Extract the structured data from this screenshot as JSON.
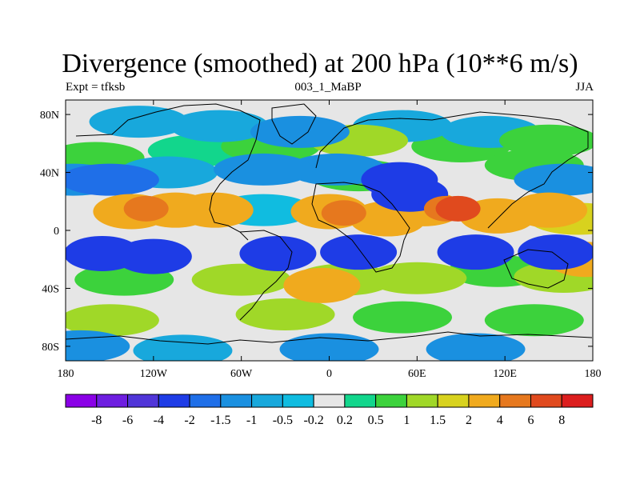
{
  "title": "Divergence (smoothed) at 200 hPa (10**6 m/s)",
  "subtitle_left": "Expt = tfksb",
  "subtitle_center": "003_1_MaBP",
  "subtitle_right": "JJA",
  "lat_labels": [
    "80N",
    "40N",
    "0",
    "40S",
    "80S"
  ],
  "lon_labels": [
    "180",
    "120W",
    "60W",
    "0",
    "60E",
    "120E",
    "180"
  ],
  "colorbar": {
    "labels": [
      "-8",
      "-6",
      "-4",
      "-2",
      "-1.5",
      "-1",
      "-0.5",
      "-0.2",
      "0.2",
      "0.5",
      "1",
      "1.5",
      "2",
      "4",
      "6",
      "8"
    ],
    "colors": [
      "#8a00e6",
      "#6e1ee0",
      "#5035d8",
      "#1e3ce6",
      "#1f6fe8",
      "#1a90e0",
      "#18a8dc",
      "#10bce0",
      "#e6e6e6",
      "#12d68c",
      "#3cd23c",
      "#a0d828",
      "#d8d21e",
      "#f0aa1e",
      "#e6781e",
      "#e04a1e",
      "#dc1e1e"
    ]
  },
  "chart_data": {
    "type": "filled-contour map",
    "variable": "Divergence (smoothed) at 200 hPa",
    "units": "10**6 m/s",
    "season": "JJA",
    "experiment": "tfksb",
    "run": "003_1_MaBP",
    "xaxis": {
      "range": [
        -180,
        180
      ],
      "ticks": [
        -180,
        -120,
        -60,
        0,
        60,
        120,
        180
      ]
    },
    "yaxis": {
      "range": [
        -90,
        90
      ],
      "ticks": [
        80,
        40,
        0,
        -40,
        -80
      ]
    },
    "levels": [
      -8,
      -6,
      -4,
      -2,
      -1.5,
      -1,
      -0.5,
      -0.2,
      0.2,
      0.5,
      1,
      1.5,
      2,
      4,
      6,
      8
    ],
    "regions": [
      {
        "lon": -175,
        "lat": 35,
        "value": -1.2
      },
      {
        "lon": -150,
        "lat": 35,
        "value": -1.8
      },
      {
        "lon": -110,
        "lat": 40,
        "value": -1.0
      },
      {
        "lon": -160,
        "lat": 50,
        "value": 0.6
      },
      {
        "lon": -90,
        "lat": 55,
        "value": 0.4
      },
      {
        "lon": -130,
        "lat": 75,
        "value": -0.8
      },
      {
        "lon": -75,
        "lat": 72,
        "value": -1.0
      },
      {
        "lon": -20,
        "lat": 68,
        "value": -1.2
      },
      {
        "lon": 50,
        "lat": 72,
        "value": -0.9
      },
      {
        "lon": 110,
        "lat": 68,
        "value": -0.7
      },
      {
        "lon": -40,
        "lat": 58,
        "value": 0.8
      },
      {
        "lon": 20,
        "lat": 62,
        "value": 1.0
      },
      {
        "lon": 90,
        "lat": 58,
        "value": 0.6
      },
      {
        "lon": 150,
        "lat": 62,
        "value": 0.8
      },
      {
        "lon": -45,
        "lat": 42,
        "value": -1.5
      },
      {
        "lon": 5,
        "lat": 42,
        "value": -1.3
      },
      {
        "lon": 20,
        "lat": 38,
        "value": 0.7
      },
      {
        "lon": 140,
        "lat": 45,
        "value": 0.7
      },
      {
        "lon": 160,
        "lat": 35,
        "value": -1.2
      },
      {
        "lon": -135,
        "lat": 13,
        "value": 2.8
      },
      {
        "lon": -125,
        "lat": 15,
        "value": 4.6
      },
      {
        "lon": -105,
        "lat": 14,
        "value": 2.4
      },
      {
        "lon": -78,
        "lat": 14,
        "value": 3.0
      },
      {
        "lon": -45,
        "lat": 14,
        "value": -0.5
      },
      {
        "lon": 0,
        "lat": 13,
        "value": 2.6
      },
      {
        "lon": 10,
        "lat": 12,
        "value": 4.8
      },
      {
        "lon": 40,
        "lat": 8,
        "value": 2.2
      },
      {
        "lon": 65,
        "lat": 15,
        "value": 2.2
      },
      {
        "lon": 80,
        "lat": 15,
        "value": 4.5
      },
      {
        "lon": 88,
        "lat": 15,
        "value": 7.0
      },
      {
        "lon": 115,
        "lat": 10,
        "value": 3.0
      },
      {
        "lon": 150,
        "lat": 14,
        "value": 2.5
      },
      {
        "lon": 170,
        "lat": 8,
        "value": 1.6
      },
      {
        "lon": 48,
        "lat": 35,
        "value": -2.6
      },
      {
        "lon": 55,
        "lat": 25,
        "value": -2.2
      },
      {
        "lon": -155,
        "lat": -16,
        "value": -2.8
      },
      {
        "lon": -120,
        "lat": -18,
        "value": -3.0
      },
      {
        "lon": -35,
        "lat": -16,
        "value": -2.6
      },
      {
        "lon": 20,
        "lat": -15,
        "value": -3.4
      },
      {
        "lon": 100,
        "lat": -15,
        "value": -2.8
      },
      {
        "lon": 155,
        "lat": -15,
        "value": -2.4
      },
      {
        "lon": 175,
        "lat": -20,
        "value": 2.0
      },
      {
        "lon": -140,
        "lat": -34,
        "value": 0.8
      },
      {
        "lon": -60,
        "lat": -34,
        "value": 1.0
      },
      {
        "lon": -5,
        "lat": -38,
        "value": 2.0
      },
      {
        "lon": 10,
        "lat": -34,
        "value": 1.2
      },
      {
        "lon": 60,
        "lat": -33,
        "value": 1.0
      },
      {
        "lon": 115,
        "lat": -28,
        "value": 0.7
      },
      {
        "lon": 160,
        "lat": -32,
        "value": 1.2
      },
      {
        "lon": -150,
        "lat": -62,
        "value": 1.0
      },
      {
        "lon": -30,
        "lat": -58,
        "value": 1.4
      },
      {
        "lon": 50,
        "lat": -60,
        "value": 0.8
      },
      {
        "lon": 140,
        "lat": -62,
        "value": 0.9
      },
      {
        "lon": -170,
        "lat": -80,
        "value": -1.5
      },
      {
        "lon": -100,
        "lat": -83,
        "value": -0.9
      },
      {
        "lon": 0,
        "lat": -82,
        "value": -1.3
      },
      {
        "lon": 100,
        "lat": -82,
        "value": -1.3
      }
    ]
  }
}
